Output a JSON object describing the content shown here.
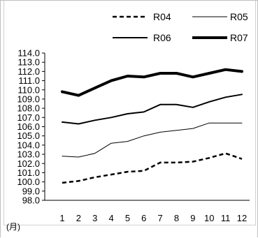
{
  "chart_data": {
    "type": "line",
    "categories": [
      "1",
      "2",
      "3",
      "4",
      "5",
      "6",
      "7",
      "8",
      "9",
      "10",
      "11",
      "12"
    ],
    "x_unit_label": "(月)",
    "ylim": [
      98.0,
      114.0
    ],
    "y_ticks": [
      "98.0",
      "99.0",
      "100.0",
      "101.0",
      "102.0",
      "103.0",
      "104.0",
      "105.0",
      "106.0",
      "107.0",
      "108.0",
      "109.0",
      "110.0",
      "111.0",
      "112.0",
      "113.0",
      "114.0"
    ],
    "grid": false,
    "legend_position": "top",
    "series": [
      {
        "name": "R04",
        "style": "dashed",
        "color": "#000000",
        "values": [
          99.9,
          100.1,
          100.5,
          100.8,
          101.1,
          101.2,
          102.1,
          102.1,
          102.2,
          102.6,
          103.1,
          102.5
        ]
      },
      {
        "name": "R05",
        "style": "thin",
        "color": "#000000",
        "values": [
          102.8,
          102.7,
          103.1,
          104.2,
          104.4,
          105.0,
          105.4,
          105.6,
          105.8,
          106.4,
          106.4,
          106.4
        ]
      },
      {
        "name": "R06",
        "style": "medium",
        "color": "#000000",
        "values": [
          106.5,
          106.3,
          106.7,
          107.0,
          107.4,
          107.6,
          108.4,
          108.4,
          108.1,
          108.7,
          109.2,
          109.5
        ]
      },
      {
        "name": "R07",
        "style": "thick",
        "color": "#000000",
        "values": [
          109.8,
          109.4,
          110.2,
          111.0,
          111.5,
          111.4,
          111.8,
          111.8,
          111.4,
          111.8,
          112.2,
          112.0
        ]
      }
    ]
  }
}
